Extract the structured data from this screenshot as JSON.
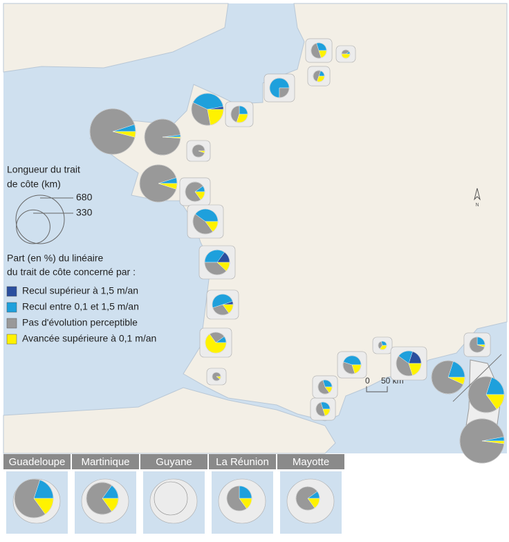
{
  "legend": {
    "size_title": [
      "Longueur du trait",
      "de côte (km)"
    ],
    "size_values": [
      680,
      330
    ],
    "share_title": [
      "Part (en %) du linéaire",
      "du trait de côte concerné par :"
    ],
    "categories": [
      {
        "name": "Recul supérieur à 1,5 m/an",
        "color": "#2b4f9e"
      },
      {
        "name": "Recul entre 0,1 et 1,5 m/an",
        "color": "#1ea0dc"
      },
      {
        "name": "Pas d'évolution perceptible",
        "color": "#999999"
      },
      {
        "name": "Avancée supérieure à 0,1 m/an",
        "color": "#fff200"
      }
    ]
  },
  "scale_labels": [
    "0",
    "50 km"
  ],
  "north": "N",
  "pies": [
    {
      "length": 68,
      "shares": [
        0,
        30,
        50,
        20
      ]
    },
    {
      "length": 20,
      "shares": [
        0,
        10,
        40,
        50
      ]
    },
    {
      "length": 36,
      "shares": [
        0,
        20,
        50,
        30
      ]
    },
    {
      "length": 109,
      "shares": [
        0,
        75,
        25,
        0
      ]
    },
    {
      "length": 294,
      "shares": [
        3,
        40,
        35,
        22
      ]
    },
    {
      "length": 80,
      "shares": [
        0,
        25,
        45,
        30
      ]
    },
    {
      "length": 604,
      "shares": [
        0,
        5,
        91,
        4
      ]
    },
    {
      "length": 374,
      "shares": [
        0,
        2,
        97,
        1
      ]
    },
    {
      "length": 45,
      "shares": [
        0,
        0,
        95,
        5
      ]
    },
    {
      "length": 404,
      "shares": [
        0,
        5,
        90,
        5
      ]
    },
    {
      "length": 109,
      "shares": [
        0,
        10,
        75,
        15
      ]
    },
    {
      "length": 180,
      "shares": [
        0,
        40,
        45,
        15
      ]
    },
    {
      "length": 180,
      "shares": [
        15,
        35,
        38,
        12
      ]
    },
    {
      "length": 125,
      "shares": [
        5,
        50,
        30,
        15
      ]
    },
    {
      "length": 125,
      "shares": [
        0,
        10,
        25,
        65
      ]
    },
    {
      "length": 20,
      "shares": [
        0,
        0,
        90,
        10
      ]
    },
    {
      "length": 56,
      "shares": [
        0,
        30,
        50,
        20
      ]
    },
    {
      "length": 56,
      "shares": [
        0,
        30,
        55,
        15
      ]
    },
    {
      "length": 94,
      "shares": [
        0,
        45,
        35,
        20
      ]
    },
    {
      "length": 20,
      "shares": [
        0,
        30,
        35,
        35
      ]
    },
    {
      "length": 180,
      "shares": [
        20,
        20,
        40,
        20
      ]
    },
    {
      "length": 320,
      "shares": [
        0,
        20,
        73,
        7
      ]
    },
    {
      "length": 68,
      "shares": [
        0,
        25,
        70,
        5
      ]
    },
    {
      "length": 374,
      "shares": [
        0,
        20,
        65,
        15
      ]
    },
    {
      "length": 570,
      "shares": [
        0,
        3,
        95,
        2
      ]
    }
  ],
  "overseas": [
    {
      "name": "Guadeloupe",
      "length": 435,
      "shares": [
        0,
        20,
        65,
        15
      ]
    },
    {
      "name": "Martinique",
      "length": 294,
      "shares": [
        0,
        15,
        70,
        15
      ]
    },
    {
      "name": "Guyane",
      "length": 320,
      "shares": null
    },
    {
      "name": "La Réunion",
      "length": 180,
      "shares": [
        0,
        25,
        60,
        15
      ]
    },
    {
      "name": "Mayotte",
      "length": 160,
      "shares": [
        0,
        10,
        75,
        15
      ]
    }
  ]
}
